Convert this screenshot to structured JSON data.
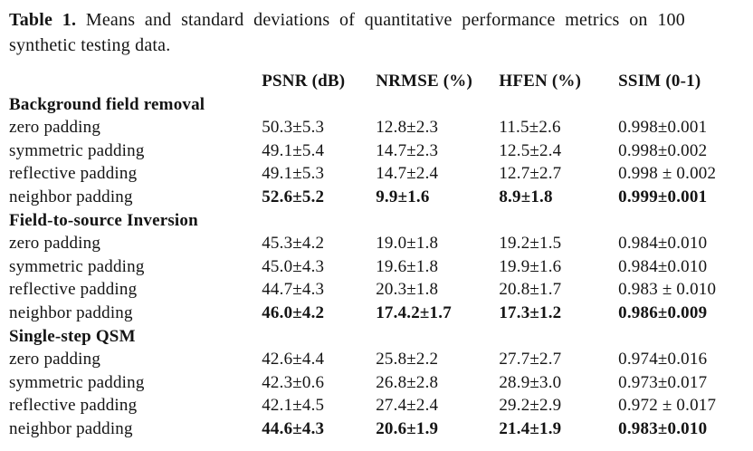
{
  "caption": {
    "label": "Table 1.",
    "line1": "Means and standard deviations of quantitative performance metrics on 100",
    "line2": "synthetic testing data."
  },
  "table": {
    "columns": [
      "PSNR (dB)",
      "NRMSE (%)",
      "HFEN (%)",
      "SSIM (0-1)"
    ],
    "sections": [
      {
        "name": "Background field removal",
        "rows": [
          {
            "label": "zero padding",
            "values": [
              "50.3±5.3",
              "12.8±2.3",
              "11.5±2.6",
              "0.998±0.001"
            ]
          },
          {
            "label": "symmetric padding",
            "values": [
              "49.1±5.4",
              "14.7±2.3",
              "12.5±2.4",
              "0.998±0.002"
            ]
          },
          {
            "label": "reflective padding",
            "values": [
              "49.1±5.3",
              "14.7±2.4",
              "12.7±2.7",
              "0.998 ± 0.002"
            ]
          },
          {
            "label": "neighbor padding",
            "values": [
              "52.6±5.2",
              "9.9±1.6",
              "8.9±1.8",
              "0.999±0.001"
            ],
            "bold_values": true
          }
        ]
      },
      {
        "name": "Field-to-source Inversion",
        "rows": [
          {
            "label": "zero padding",
            "values": [
              "45.3±4.2",
              "19.0±1.8",
              "19.2±1.5",
              "0.984±0.010"
            ]
          },
          {
            "label": "symmetric padding",
            "values": [
              "45.0±4.3",
              "19.6±1.8",
              "19.9±1.6",
              "0.984±0.010"
            ]
          },
          {
            "label": "reflective padding",
            "values": [
              "44.7±4.3",
              "20.3±1.8",
              "20.8±1.7",
              "0.983 ± 0.010"
            ]
          },
          {
            "label": "neighbor padding",
            "values": [
              "46.0±4.2",
              "17.4.2±1.7",
              "17.3±1.2",
              "0.986±0.009"
            ],
            "bold_values": true
          }
        ]
      },
      {
        "name": "Single-step QSM",
        "rows": [
          {
            "label": "zero padding",
            "values": [
              "42.6±4.4",
              "25.8±2.2",
              "27.7±2.7",
              "0.974±0.016"
            ]
          },
          {
            "label": "symmetric padding",
            "values": [
              "42.3±0.6",
              "26.8±2.8",
              "28.9±3.0",
              "0.973±0.017"
            ]
          },
          {
            "label": "reflective padding",
            "values": [
              "42.1±4.5",
              "27.4±2.4",
              "29.2±2.9",
              "0.972 ± 0.017"
            ]
          },
          {
            "label": "neighbor padding",
            "values": [
              "44.6±4.3",
              "20.6±1.9",
              "21.4±1.9",
              "0.983±0.010"
            ],
            "bold_values": true
          }
        ]
      }
    ]
  }
}
